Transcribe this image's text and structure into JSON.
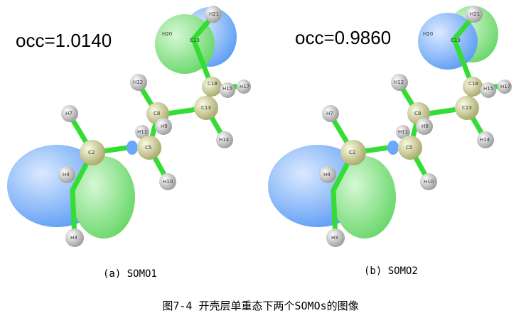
{
  "panels": [
    {
      "occ": "occ=1.0140",
      "label": "(a) SOMO1",
      "lobe_top": {
        "front": "#8ae88a",
        "back": "#7fb6ff"
      },
      "lobe_bottom": {
        "front": "#8ae88a",
        "back": "#7fb6ff"
      }
    },
    {
      "occ": "occ=0.9860",
      "label": "(b) SOMO2",
      "lobe_top": {
        "front": "#7fb6ff",
        "back": "#8ae88a"
      },
      "lobe_bottom": {
        "front": "#8ae88a",
        "back": "#7fb6ff"
      }
    }
  ],
  "atoms": {
    "H21": "H21",
    "H20": "H20",
    "C19": "C19",
    "C18": "C18",
    "H15": "H15",
    "H17": "H17",
    "H16": "H16",
    "C13": "C13",
    "H12": "H12",
    "C8": "C8",
    "H11": "H11",
    "H9": "H9",
    "C5": "C5",
    "H7": "H7",
    "C2": "C2",
    "H4": "H4",
    "H6": "H6",
    "C1": "C1",
    "H3": "H3",
    "H10": "H10",
    "H14": "H14"
  },
  "caption": "图7-4 开壳层单重态下两个SOMOs的图像",
  "colors": {
    "bond": "#33dd33",
    "carbon": "#d8d8a0",
    "hydrogen": "#e8e8e8"
  }
}
